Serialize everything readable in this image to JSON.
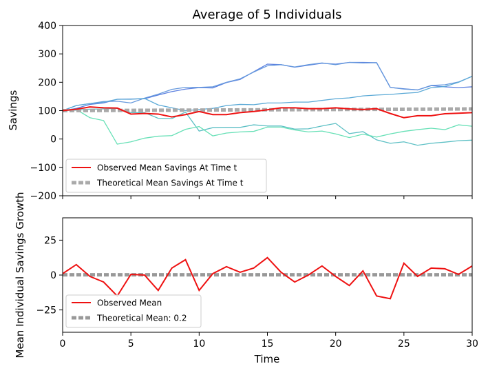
{
  "chart_data": {
    "title": "Average of 5 Individuals",
    "xlabel": "Time",
    "xlim": [
      0,
      30
    ],
    "x_ticks": [
      0,
      5,
      10,
      15,
      20,
      25,
      30
    ],
    "x": [
      0,
      1,
      2,
      3,
      4,
      5,
      6,
      7,
      8,
      9,
      10,
      11,
      12,
      13,
      14,
      15,
      16,
      17,
      18,
      19,
      20,
      21,
      22,
      23,
      24,
      25,
      26,
      27,
      28,
      29,
      30
    ],
    "panels": [
      {
        "type": "line",
        "ylabel": "Savings",
        "ylim": [
          -200,
          400
        ],
        "y_ticks": [
          -200,
          -100,
          0,
          100,
          200,
          300,
          400
        ],
        "grid": false,
        "legend_position": "lower-left",
        "individuals": [
          {
            "color": "#5b7fe0",
            "values": [
              100,
              108,
              122,
              127,
              140,
              141,
              142,
              155,
              167,
              176,
              181,
              180,
              199,
              210,
              237,
              264,
              262,
              253,
              260,
              267,
              264,
              270,
              270,
              269,
              182,
              177,
              173,
              188,
              184,
              181,
              184
            ]
          },
          {
            "color": "#6699dd",
            "values": [
              100,
              118,
              125,
              132,
              133,
              127,
              144,
              158,
              175,
              182,
              182,
              184,
              200,
              212,
              236,
              258,
              262,
              254,
              262,
              268,
              262,
              270,
              268,
              269,
              182,
              176,
              173,
              189,
              191,
              201,
              221
            ]
          },
          {
            "color": "#5aa9d6",
            "values": [
              100,
              118,
              125,
              130,
              140,
              140,
              143,
              120,
              110,
              100,
              104,
              108,
              118,
              122,
              121,
              127,
              127,
              130,
              130,
              136,
              142,
              145,
              152,
              155,
              157,
              161,
              164,
              181,
              185,
              200,
              221
            ]
          },
          {
            "color": "#5bbfc4",
            "values": [
              100,
              102,
              105,
              106,
              108,
              93,
              93,
              73,
              72,
              95,
              28,
              40,
              41,
              41,
              50,
              46,
              46,
              35,
              36,
              46,
              55,
              19,
              26,
              -3,
              -15,
              -10,
              -22,
              -15,
              -11,
              -6,
              -4
            ]
          },
          {
            "color": "#66e0b6",
            "values": [
              100,
              104,
              75,
              65,
              -18,
              -10,
              3,
              10,
              12,
              34,
              44,
              11,
              21,
              25,
              27,
              42,
              42,
              32,
              25,
              28,
              18,
              5,
              17,
              7,
              18,
              27,
              33,
              38,
              33,
              50,
              45
            ]
          }
        ],
        "series": [
          {
            "name": "Observed Mean Savings At Time t",
            "color": "#ee1111",
            "style": "solid",
            "values": [
              100,
              105,
              113,
              110,
              109,
              88,
              90,
              88,
              78,
              86,
              97,
              86,
              86,
              93,
              97,
              103,
              110,
              110,
              107,
              107,
              110,
              106,
              104,
              107,
              90,
              75,
              82,
              82,
              89,
              91,
              93
            ]
          },
          {
            "name": "Theoretical Mean Savings At Time t",
            "color": "#aaaaaa",
            "style": "dashed",
            "values": [
              100,
              100.2,
              100.4,
              100.6,
              100.8,
              101,
              101.2,
              101.4,
              101.6,
              101.8,
              102,
              102.2,
              102.4,
              102.6,
              102.8,
              103,
              103.2,
              103.4,
              103.6,
              103.8,
              104,
              104.2,
              104.4,
              104.6,
              104.8,
              105,
              105.2,
              105.4,
              105.6,
              105.8,
              106
            ]
          }
        ]
      },
      {
        "type": "line",
        "ylabel": "Mean Individual Savings Growth",
        "ylim": [
          -41,
          41
        ],
        "y_ticks": [
          -25,
          0,
          25
        ],
        "grid": false,
        "legend_position": "lower-left",
        "series": [
          {
            "name": "Observed Mean",
            "color": "#ee1111",
            "style": "solid",
            "values": [
              1,
              7.5,
              -1,
              -5,
              -15,
              0.5,
              0,
              -11,
              5,
              11,
              -11,
              1,
              6,
              2,
              5,
              12.5,
              2,
              -5,
              0,
              6.5,
              -1,
              -7.5,
              3,
              -15,
              -17,
              8.5,
              -1,
              5,
              4.5,
              0.5,
              6.5
            ]
          },
          {
            "name": "Theoretical Mean: 0.2",
            "color": "#999999",
            "style": "dashed",
            "values": [
              0.2,
              0.2,
              0.2,
              0.2,
              0.2,
              0.2,
              0.2,
              0.2,
              0.2,
              0.2,
              0.2,
              0.2,
              0.2,
              0.2,
              0.2,
              0.2,
              0.2,
              0.2,
              0.2,
              0.2,
              0.2,
              0.2,
              0.2,
              0.2,
              0.2,
              0.2,
              0.2,
              0.2,
              0.2,
              0.2,
              0.2
            ]
          }
        ]
      }
    ]
  }
}
